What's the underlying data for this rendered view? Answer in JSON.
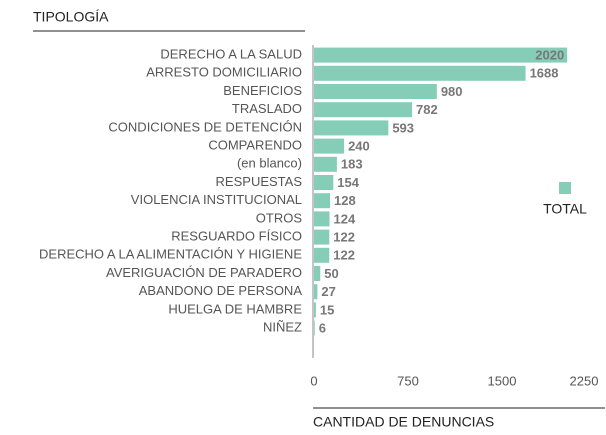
{
  "chart_data": {
    "type": "bar",
    "orientation": "horizontal",
    "title": "TIPOLOGÍA",
    "xlabel": "CANTIDAD DE DENUNCIAS",
    "categories": [
      "DERECHO A LA SALUD",
      "ARRESTO DOMICILIARIO",
      "BENEFICIOS",
      "TRASLADO",
      "CONDICIONES DE DETENCIÓN",
      "COMPARENDO",
      "(en blanco)",
      "RESPUESTAS",
      "VIOLENCIA INSTITUCIONAL",
      "OTROS",
      "RESGUARDO FÍSICO",
      "DERECHO A LA ALIMENTACIÓN Y HIGIENE",
      "AVERIGUACIÓN DE PARADERO",
      "ABANDONO DE PERSONA",
      "HUELGA DE HAMBRE",
      "NIÑEZ"
    ],
    "series": [
      {
        "name": "TOTAL",
        "color": "#86cdb8",
        "values": [
          2020,
          1688,
          980,
          782,
          593,
          240,
          183,
          154,
          128,
          124,
          122,
          122,
          50,
          27,
          15,
          6
        ]
      }
    ],
    "xlim": [
      0,
      2250
    ],
    "xticks": [
      0,
      750,
      1500,
      2250
    ],
    "legend": "right"
  }
}
